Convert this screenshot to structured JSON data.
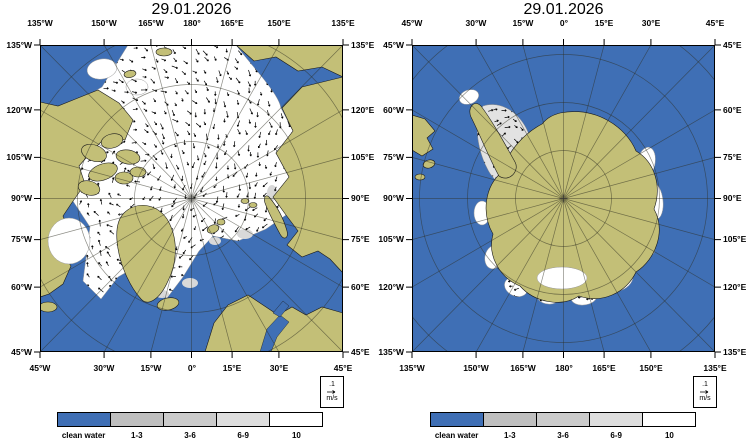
{
  "colors": {
    "ocean": "#3F6FB5",
    "land": "#C3BF77",
    "ice": "#FFFFFF",
    "ice_gray": "#E2E2E2",
    "graticule": "#2E2E20"
  },
  "maps": [
    {
      "id": "arctic",
      "title": "29.01.2026",
      "top_labels": [
        "135°W",
        "150°W",
        "165°W",
        "180°",
        "165°E",
        "150°E",
        "135°E"
      ],
      "left_labels": [
        "135°W",
        "120°W",
        "105°W",
        "90°W",
        "75°W",
        "60°W",
        "45°W"
      ],
      "right_labels": [
        "135°E",
        "120°E",
        "105°E",
        "90°E",
        "75°E",
        "60°E",
        "45°E"
      ],
      "bottom_labels": [
        "45°W",
        "30°W",
        "15°W",
        "0°",
        "15°E",
        "30°E",
        "45°E"
      ],
      "scale": {
        "value": ".1",
        "unit": "m/s"
      }
    },
    {
      "id": "antarctic",
      "title": "29.01.2026",
      "top_labels": [
        "45°W",
        "30°W",
        "15°W",
        "0°",
        "15°E",
        "30°E",
        "45°E"
      ],
      "left_labels": [
        "45°W",
        "60°W",
        "75°W",
        "90°W",
        "105°W",
        "120°W",
        "135°W"
      ],
      "right_labels": [
        "45°E",
        "60°E",
        "75°E",
        "90°E",
        "105°E",
        "120°E",
        "135°E"
      ],
      "bottom_labels": [
        "135°W",
        "150°W",
        "165°W",
        "180°",
        "165°E",
        "150°E",
        "135°E"
      ],
      "scale": {
        "value": ".1",
        "unit": "m/s"
      }
    }
  ],
  "legend": {
    "items": [
      {
        "label": "clean water",
        "color": "#3F6FB5"
      },
      {
        "label": "1-3",
        "color": "#BFBFBF"
      },
      {
        "label": "3-6",
        "color": "#CBCBCB"
      },
      {
        "label": "6-9",
        "color": "#DEDEDE"
      },
      {
        "label": "10",
        "color": "#FFFFFF"
      }
    ]
  }
}
